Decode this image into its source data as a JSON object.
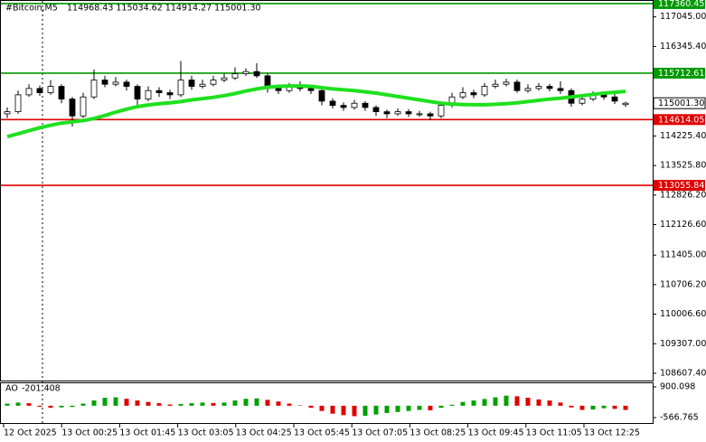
{
  "chart_data": {
    "type": "candlestick",
    "title": "#Bitcoin,M5",
    "ohlc_text": "114968.43 115034.62 114914.27 115001.30",
    "open": [
      114750,
      114800,
      115200,
      115350,
      115250,
      115400,
      115100,
      114700,
      115150,
      115550,
      115450,
      115500,
      115400,
      115100,
      115300,
      115250,
      115200,
      115550,
      115400,
      115450,
      115550,
      115600,
      115700,
      115750,
      115650,
      115350,
      115300,
      115400,
      115350,
      115300,
      115050,
      114950,
      114900,
      115000,
      114900,
      114800,
      114750,
      114800,
      114750,
      114750,
      114700,
      114950,
      115150,
      115250,
      115200,
      115400,
      115450,
      115500,
      115300,
      115350,
      115400,
      115350,
      115300,
      115000,
      115100,
      115200,
      115150,
      114968.43
    ],
    "high": [
      114900,
      115300,
      115450,
      115420,
      115550,
      115450,
      115150,
      115250,
      115800,
      115650,
      115620,
      115560,
      115450,
      115400,
      115380,
      115320,
      116000,
      115650,
      115560,
      115650,
      115700,
      115850,
      115830,
      115950,
      115700,
      115420,
      115480,
      115520,
      115420,
      115350,
      115120,
      115020,
      115080,
      115050,
      114950,
      114850,
      114880,
      114860,
      114820,
      114800,
      115020,
      115250,
      115380,
      115320,
      115480,
      115560,
      115580,
      115560,
      115450,
      115480,
      115460,
      115520,
      115350,
      115200,
      115280,
      115260,
      115220,
      115034.62
    ],
    "low": [
      114650,
      114750,
      115150,
      115180,
      115200,
      115000,
      114450,
      114650,
      115100,
      115380,
      115400,
      115300,
      114950,
      115050,
      115150,
      115100,
      115150,
      115320,
      115350,
      115400,
      115500,
      115550,
      115650,
      115600,
      115250,
      115220,
      115250,
      115280,
      115220,
      114950,
      114880,
      114820,
      114850,
      114820,
      114700,
      114650,
      114700,
      114680,
      114680,
      114600,
      114650,
      114900,
      115100,
      115120,
      115150,
      115350,
      115400,
      115250,
      115250,
      115300,
      115280,
      115220,
      114920,
      114950,
      115050,
      115080,
      114980,
      114914.27
    ],
    "close": [
      114800,
      115200,
      115350,
      115250,
      115400,
      115100,
      114700,
      115150,
      115550,
      115450,
      115500,
      115400,
      115100,
      115300,
      115250,
      115200,
      115550,
      115400,
      115450,
      115550,
      115600,
      115700,
      115750,
      115650,
      115350,
      115300,
      115400,
      115350,
      115300,
      115050,
      114950,
      114900,
      115000,
      114900,
      114800,
      114750,
      114800,
      114750,
      114750,
      114700,
      114950,
      115150,
      115250,
      115200,
      115400,
      115450,
      115500,
      115300,
      115350,
      115400,
      115350,
      115300,
      115000,
      115100,
      115200,
      115150,
      115050,
      115001.3
    ],
    "up_color": "#ffffff",
    "down_color": "#000000",
    "ma_values": [
      114210,
      114280,
      114350,
      114420,
      114480,
      114530,
      114560,
      114590,
      114640,
      114710,
      114790,
      114860,
      114920,
      114960,
      114990,
      115010,
      115040,
      115080,
      115110,
      115140,
      115180,
      115230,
      115290,
      115340,
      115380,
      115400,
      115410,
      115410,
      115400,
      115370,
      115340,
      115320,
      115300,
      115270,
      115240,
      115200,
      115160,
      115120,
      115080,
      115040,
      115000,
      114980,
      114970,
      114965,
      114965,
      114975,
      114990,
      115010,
      115040,
      115070,
      115100,
      115120,
      115150,
      115180,
      115210,
      115240,
      115260,
      115280
    ],
    "ma_color": "#1fe01f",
    "ylim": [
      108435,
      117445
    ],
    "yticks": [
      {
        "value": 117045,
        "label": "117045.00"
      },
      {
        "value": 116345.4,
        "label": "116345.40"
      },
      {
        "value": 114225.4,
        "label": "114225.40"
      },
      {
        "value": 113525.8,
        "label": "113525.80"
      },
      {
        "value": 112826.2,
        "label": "112826.20"
      },
      {
        "value": 112126.6,
        "label": "112126.60"
      },
      {
        "value": 111405,
        "label": "111405.00"
      },
      {
        "value": 110706.2,
        "label": "110706.20"
      },
      {
        "value": 110006.6,
        "label": "110006.60"
      },
      {
        "value": 109307,
        "label": "109307.00"
      },
      {
        "value": 108607.4,
        "label": "108607.40"
      }
    ],
    "levels": [
      {
        "value": 117360.45,
        "color": "#009900"
      },
      {
        "value": 115712.61,
        "color": "#009900"
      },
      {
        "value": 114614.05,
        "color": "#e00000"
      },
      {
        "value": 113055.84,
        "color": "#e00000"
      }
    ],
    "last_price": {
      "value": 115001.3,
      "label": "115001.30"
    },
    "x_labels": [
      "12 Oct 2025",
      "13 Oct 00:25",
      "13 Oct 01:45",
      "13 Oct 03:05",
      "13 Oct 04:25",
      "13 Oct 05:45",
      "13 Oct 07:05",
      "13 Oct 08:25",
      "13 Oct 09:45",
      "13 Oct 11:05",
      "13 Oct 12:25"
    ],
    "ao": {
      "title": "AO",
      "values": [
        100,
        150,
        120,
        -50,
        -100,
        -80,
        -60,
        100,
        250,
        380,
        400,
        330,
        250,
        180,
        120,
        60,
        80,
        120,
        150,
        130,
        150,
        250,
        330,
        350,
        280,
        200,
        100,
        20,
        -100,
        -250,
        -380,
        -450,
        -500,
        -480,
        -420,
        -350,
        -300,
        -250,
        -200,
        -220,
        -100,
        50,
        180,
        250,
        320,
        400,
        480,
        450,
        380,
        300,
        250,
        150,
        -80,
        -200,
        -180,
        -120,
        -150,
        -201.408
      ],
      "up_color": "#00a000",
      "down_color": "#e00000",
      "ylim": [
        -566.765,
        900.098
      ],
      "yticks": [
        900.098,
        -566.765
      ]
    }
  }
}
